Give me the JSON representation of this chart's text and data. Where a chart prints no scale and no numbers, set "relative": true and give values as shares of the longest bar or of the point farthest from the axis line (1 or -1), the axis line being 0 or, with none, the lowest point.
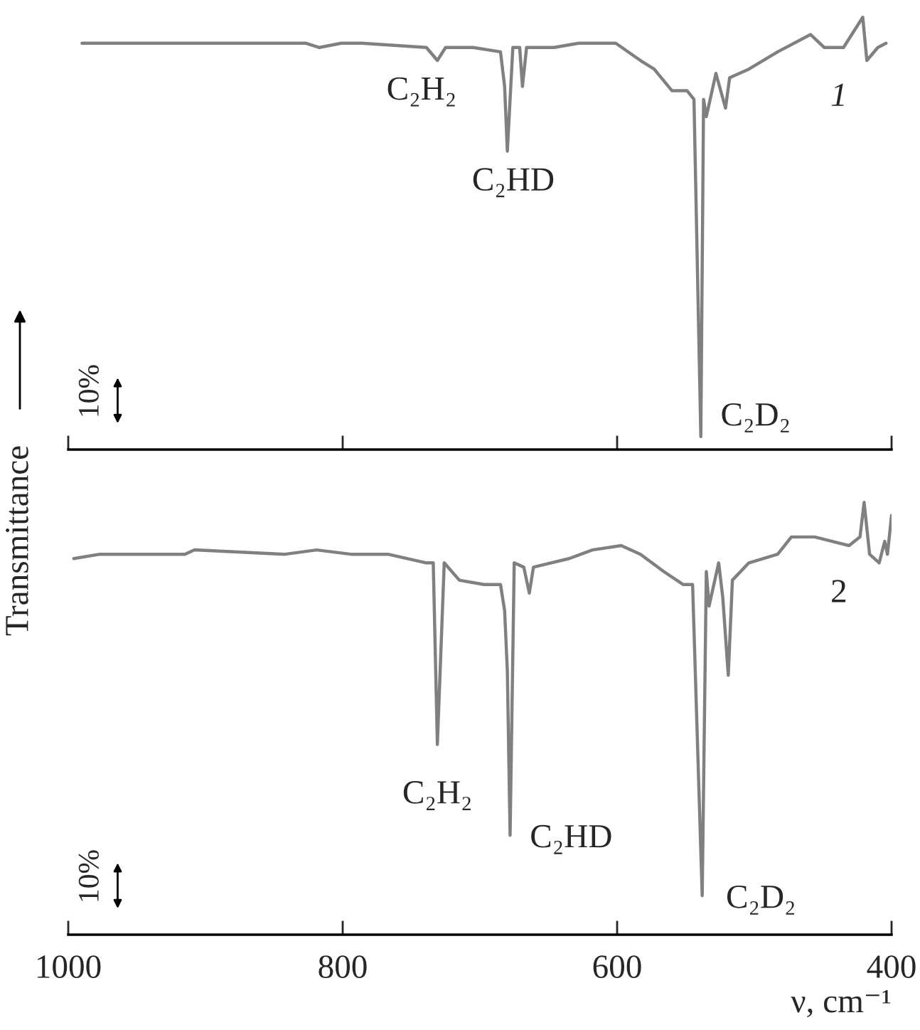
{
  "chart_data": [
    {
      "type": "line",
      "relative": true,
      "ylabel": "Transmittance",
      "xlim": [
        1000,
        400
      ],
      "xticks": [
        {
          "value": 1000,
          "label": null
        },
        {
          "value": 800,
          "label": null
        },
        {
          "value": 600,
          "label": null
        },
        {
          "value": 400,
          "label": null
        }
      ],
      "tick_labels": false,
      "series": [
        {
          "name": "1",
          "color": "#808080",
          "x": [
            990,
            846,
            827,
            817,
            801,
            786,
            739,
            731,
            725,
            705,
            685,
            682,
            680,
            676,
            671,
            669,
            666,
            646,
            628,
            614,
            601,
            583,
            573,
            560,
            549,
            544,
            539,
            537,
            535,
            528,
            521,
            518,
            504,
            483,
            459,
            449,
            435,
            421,
            418,
            410,
            404
          ],
          "values": [
            0.94,
            0.94,
            0.94,
            0.93,
            0.94,
            0.94,
            0.93,
            0.9,
            0.93,
            0.93,
            0.92,
            0.84,
            0.69,
            0.93,
            0.93,
            0.84,
            0.93,
            0.93,
            0.94,
            0.94,
            0.94,
            0.9,
            0.88,
            0.83,
            0.83,
            0.81,
            0.03,
            0.81,
            0.77,
            0.87,
            0.79,
            0.86,
            0.88,
            0.92,
            0.96,
            0.93,
            0.93,
            1.0,
            0.9,
            0.93,
            0.94
          ]
        }
      ],
      "annotations": [
        {
          "text": "C₂H₂",
          "x": 731,
          "y": 0.9
        },
        {
          "text": "C₂HD",
          "x": 680,
          "y": 0.69
        },
        {
          "text": "C₂D₂",
          "x": 539,
          "y": 0.03
        },
        "10%"
      ]
    },
    {
      "type": "line",
      "relative": true,
      "xlabel": "ν, cm⁻¹",
      "xlim": [
        1000,
        400
      ],
      "xticks": [
        1000,
        800,
        600,
        400
      ],
      "tick_labels": "x",
      "series": [
        {
          "name": "2",
          "color": "#808080",
          "x": [
            996,
            977,
            915,
            908,
            842,
            819,
            794,
            767,
            739,
            734,
            731,
            726,
            715,
            697,
            685,
            682,
            680,
            678,
            675,
            668,
            664,
            661,
            635,
            618,
            597,
            583,
            566,
            552,
            545,
            538,
            535,
            533,
            526,
            523,
            519,
            516,
            504,
            483,
            473,
            456,
            431,
            423,
            420,
            416,
            409,
            405,
            403,
            400
          ],
          "values": [
            0.87,
            0.88,
            0.88,
            0.89,
            0.88,
            0.89,
            0.88,
            0.88,
            0.86,
            0.86,
            0.44,
            0.86,
            0.82,
            0.81,
            0.81,
            0.75,
            0.61,
            0.23,
            0.86,
            0.85,
            0.79,
            0.85,
            0.87,
            0.89,
            0.9,
            0.88,
            0.84,
            0.81,
            0.81,
            0.09,
            0.84,
            0.76,
            0.86,
            0.78,
            0.6,
            0.82,
            0.86,
            0.88,
            0.92,
            0.92,
            0.9,
            0.92,
            1.0,
            0.88,
            0.86,
            0.91,
            0.88,
            0.97
          ]
        }
      ],
      "annotations": [
        {
          "text": "C₂H₂",
          "x": 731,
          "y": 0.44
        },
        {
          "text": "C₂HD",
          "x": 678,
          "y": 0.23
        },
        {
          "text": "C₂D₂",
          "x": 538,
          "y": 0.09
        },
        "10%"
      ]
    }
  ]
}
